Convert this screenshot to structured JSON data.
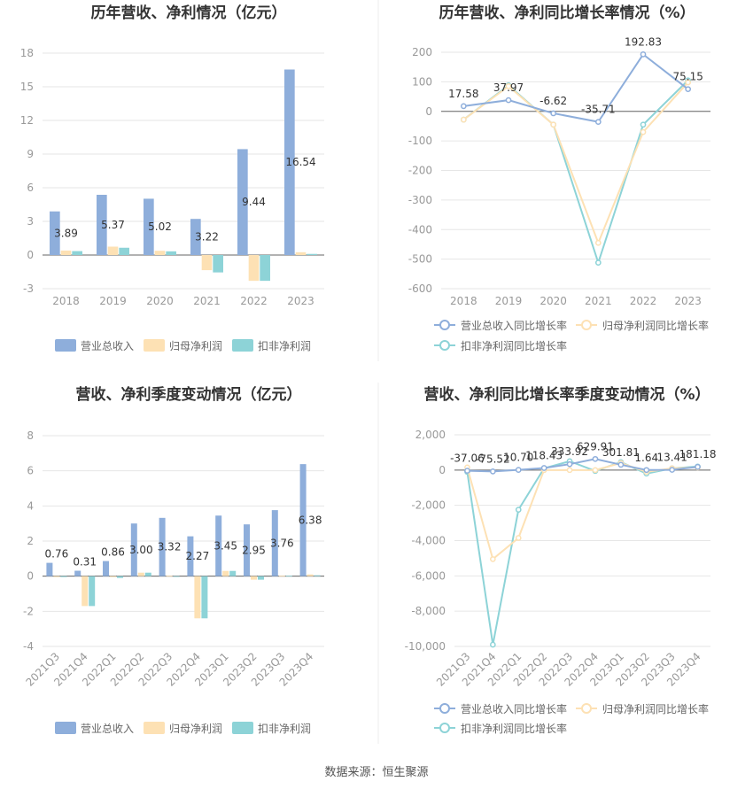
{
  "footer": "数据来源：恒生聚源",
  "colors": {
    "revenue": "#8eaedb",
    "parent_profit": "#fde1b4",
    "deducted_profit": "#8dd3d7",
    "grid": "#e6e6e6",
    "axis_text": "#999999",
    "title": "#333333",
    "label": "#333333"
  },
  "chart_data": [
    {
      "id": "annual_bar",
      "type": "bar",
      "title": "历年营收、净利情况（亿元）",
      "categories": [
        "2018",
        "2019",
        "2020",
        "2021",
        "2022",
        "2023"
      ],
      "ylim": [
        -3,
        18
      ],
      "yticks": [
        -3,
        0,
        3,
        6,
        9,
        12,
        15,
        18
      ],
      "series": [
        {
          "name": "营业总收入",
          "values": [
            3.89,
            5.37,
            5.02,
            3.22,
            9.44,
            16.54
          ],
          "labels": [
            "3.89",
            "5.37",
            "5.02",
            "3.22",
            "9.44",
            "16.54"
          ]
        },
        {
          "name": "归母净利润",
          "values": [
            0.4,
            0.75,
            0.38,
            -1.35,
            -2.3,
            0.25
          ]
        },
        {
          "name": "扣非净利润",
          "values": [
            0.35,
            0.65,
            0.33,
            -1.55,
            -2.3,
            0.1
          ]
        }
      ]
    },
    {
      "id": "annual_line",
      "type": "line",
      "title": "历年营收、净利同比增长率情况（%）",
      "categories": [
        "2018",
        "2019",
        "2020",
        "2021",
        "2022",
        "2023"
      ],
      "ylim": [
        -600,
        200
      ],
      "yticks": [
        -600,
        -500,
        -400,
        -300,
        -200,
        -100,
        0,
        100,
        200
      ],
      "series": [
        {
          "name": "营业总收入同比增长率",
          "values": [
            17.58,
            37.97,
            -6.62,
            -35.71,
            192.83,
            75.15
          ],
          "labels": [
            "17.58",
            "37.97",
            "-6.62",
            "-35.71",
            "192.83",
            "75.15"
          ]
        },
        {
          "name": "归母净利润同比增长率",
          "values": [
            -28,
            85,
            -45,
            -445,
            -70,
            98
          ]
        },
        {
          "name": "扣非净利润同比增长率",
          "values": [
            -28,
            88,
            -45,
            -512,
            -45,
            105
          ]
        }
      ]
    },
    {
      "id": "quarter_bar",
      "type": "bar",
      "title": "营收、净利季度变动情况（亿元）",
      "categories": [
        "2021Q3",
        "2021Q4",
        "2022Q1",
        "2022Q2",
        "2022Q3",
        "2022Q4",
        "2023Q1",
        "2023Q2",
        "2023Q3",
        "2023Q4"
      ],
      "ylim": [
        -4,
        8
      ],
      "yticks": [
        -4,
        -2,
        0,
        2,
        4,
        6,
        8
      ],
      "series": [
        {
          "name": "营业总收入",
          "values": [
            0.76,
            0.31,
            0.86,
            3.0,
            3.32,
            2.27,
            3.45,
            2.95,
            3.76,
            6.38
          ],
          "labels": [
            "0.76",
            "0.31",
            "0.86",
            "3.00",
            "3.32",
            "2.27",
            "3.45",
            "2.95",
            "3.76",
            "6.38"
          ]
        },
        {
          "name": "归母净利润",
          "values": [
            -0.05,
            -1.7,
            -0.05,
            0.2,
            0.02,
            -2.4,
            0.3,
            -0.2,
            0.03,
            0.1
          ]
        },
        {
          "name": "扣非净利润",
          "values": [
            -0.05,
            -1.7,
            -0.1,
            0.2,
            0.0,
            -2.4,
            0.3,
            -0.2,
            0.03,
            0.05
          ]
        }
      ]
    },
    {
      "id": "quarter_line",
      "type": "line",
      "title": "营收、净利同比增长率季度变动情况（%）",
      "categories": [
        "2021Q3",
        "2021Q4",
        "2022Q1",
        "2022Q2",
        "2022Q3",
        "2022Q4",
        "2023Q1",
        "2023Q2",
        "2023Q3",
        "2023Q4"
      ],
      "ylim": [
        -10000,
        2000
      ],
      "yticks": [
        -10000,
        -8000,
        -6000,
        -4000,
        -2000,
        0,
        2000
      ],
      "ytick_labels": [
        "-10,000",
        "-8,000",
        "-6,000",
        "-4,000",
        "-2,000",
        "0",
        "2,000"
      ],
      "series": [
        {
          "name": "营业总收入同比增长率",
          "values": [
            -37.06,
            -75.52,
            10.7,
            118.43,
            333.92,
            629.91,
            301.81,
            1.64,
            13.41,
            181.18
          ],
          "labels": [
            "-37.06",
            "-75.52",
            "10.70",
            "118.43",
            "333.92",
            "629.91",
            "301.81",
            "1.64",
            "13.41",
            "181.18"
          ]
        },
        {
          "name": "归母净利润同比增长率",
          "values": [
            150,
            -5050,
            -3850,
            0,
            0,
            0,
            400,
            -100,
            100,
            150
          ]
        },
        {
          "name": "扣非净利润同比增长率",
          "values": [
            -100,
            -9900,
            -2250,
            100,
            500,
            -50,
            450,
            -200,
            100,
            200
          ]
        }
      ]
    }
  ]
}
